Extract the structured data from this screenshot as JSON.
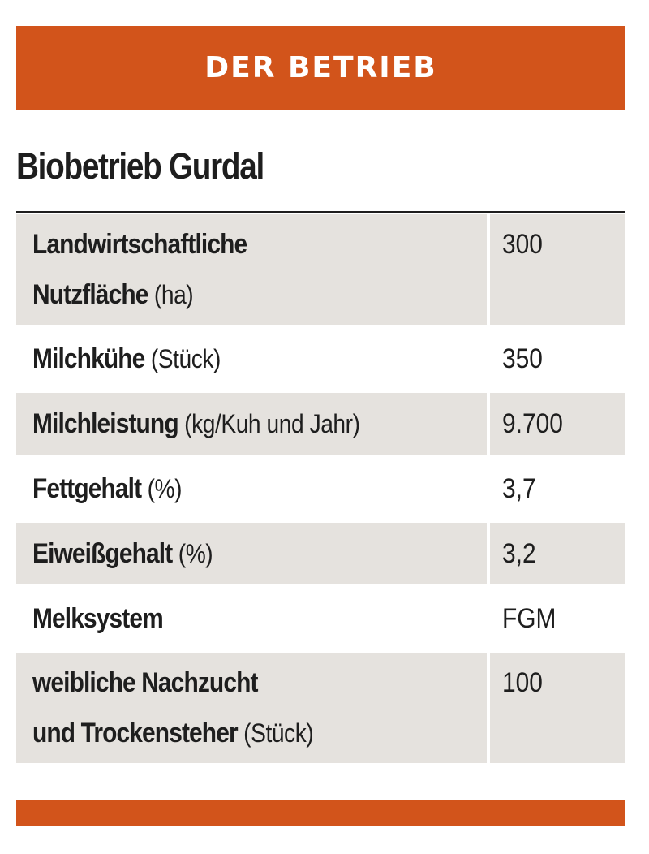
{
  "header": {
    "title": "DER BETRIEB"
  },
  "company": {
    "name": "Biobetrieb Gurdal"
  },
  "rows": [
    {
      "label_line1": "Landwirtschaftliche",
      "label_line2": "Nutzfläche",
      "unit": "(ha)",
      "value": "300"
    },
    {
      "label": "Milchkühe",
      "unit": "(Stück)",
      "value": "350"
    },
    {
      "label": "Milchleistung",
      "unit": "(kg/Kuh und Jahr)",
      "value": "9.700"
    },
    {
      "label": "Fettgehalt",
      "unit": "(%)",
      "value": "3,7"
    },
    {
      "label": "Eiweißgehalt",
      "unit": "(%)",
      "value": "3,2"
    },
    {
      "label": "Melksystem",
      "value": "FGM"
    },
    {
      "label_line1": "weibliche Nachzucht",
      "label_line2": "und Trockensteher",
      "unit": "(Stück)",
      "value": "100"
    }
  ],
  "colors": {
    "accent": "#d2541b",
    "row_shade": "#e5e2de",
    "text": "#1e1e1e"
  }
}
